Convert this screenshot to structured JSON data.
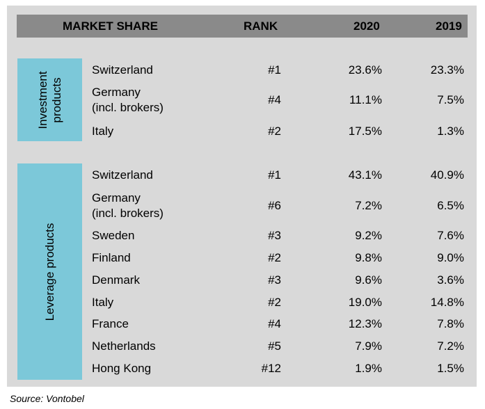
{
  "header": {
    "market_share": "MARKET SHARE",
    "rank": "RANK",
    "year_2020": "2020",
    "year_2019": "2019"
  },
  "groups": [
    {
      "label": "Investment\nproducts",
      "rows": [
        {
          "country": "Switzerland",
          "rank": "#1",
          "v2020": "23.6%",
          "v2019": "23.3%"
        },
        {
          "country": "Germany\n(incl. brokers)",
          "rank": "#4",
          "v2020": "11.1%",
          "v2019": "7.5%"
        },
        {
          "country": "Italy",
          "rank": "#2",
          "v2020": "17.5%",
          "v2019": "1.3%"
        }
      ]
    },
    {
      "label": "Leverage products",
      "rows": [
        {
          "country": "Switzerland",
          "rank": "#1",
          "v2020": "43.1%",
          "v2019": "40.9%"
        },
        {
          "country": "Germany\n(incl. brokers)",
          "rank": "#6",
          "v2020": "7.2%",
          "v2019": "6.5%"
        },
        {
          "country": "Sweden",
          "rank": "#3",
          "v2020": "9.2%",
          "v2019": "7.6%"
        },
        {
          "country": "Finland",
          "rank": "#2",
          "v2020": "9.8%",
          "v2019": "9.0%"
        },
        {
          "country": "Denmark",
          "rank": "#3",
          "v2020": "9.6%",
          "v2019": "3.6%"
        },
        {
          "country": "Italy",
          "rank": "#2",
          "v2020": "19.0%",
          "v2019": "14.8%"
        },
        {
          "country": "France",
          "rank": "#4",
          "v2020": "12.3%",
          "v2019": "7.8%"
        },
        {
          "country": "Netherlands",
          "rank": "#5",
          "v2020": "7.9%",
          "v2019": "7.2%"
        },
        {
          "country": "Hong Kong",
          "rank": "#12",
          "v2020": "1.9%",
          "v2019": "1.5%"
        }
      ]
    }
  ],
  "source": "Source: Vontobel",
  "colors": {
    "header_bg": "#8a8a8a",
    "panel_bg": "#d9d9d9",
    "group_bg": "#7cc8d9"
  }
}
